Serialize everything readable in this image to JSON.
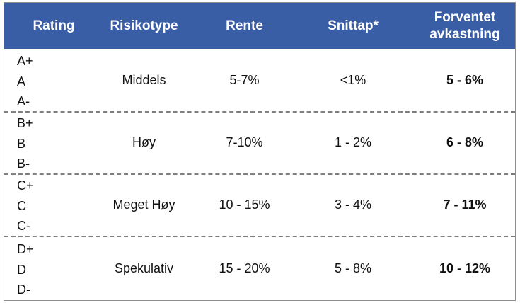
{
  "header": {
    "rating": "Rating",
    "risk_type": "Risikotype",
    "rate": "Rente",
    "avg_loss": "Snittap*",
    "expected_return_line1": "Forventet",
    "expected_return_line2": "avkastning"
  },
  "rows": [
    {
      "ratings": [
        "A+",
        "A",
        "A-"
      ],
      "risk_type": "Middels",
      "rate": "5-7%",
      "avg_loss": "<1%",
      "expected_return": "5 - 6%"
    },
    {
      "ratings": [
        "B+",
        "B",
        "B-"
      ],
      "risk_type": "Høy",
      "rate": "7-10%",
      "avg_loss": "1 - 2%",
      "expected_return": "6 - 8%"
    },
    {
      "ratings": [
        "C+",
        "C",
        "C-"
      ],
      "risk_type": "Meget Høy",
      "rate": "10 - 15%",
      "avg_loss": "3 - 4%",
      "expected_return": "7 - 11%"
    },
    {
      "ratings": [
        "D+",
        "D",
        "D-"
      ],
      "risk_type": "Spekulativ",
      "rate": "15 - 20%",
      "avg_loss": "5 - 8%",
      "expected_return": "10 - 12%"
    }
  ],
  "colors": {
    "header_bg": "#3a5ea6",
    "header_text": "#ffffff",
    "divider": "#7f7f7f"
  }
}
